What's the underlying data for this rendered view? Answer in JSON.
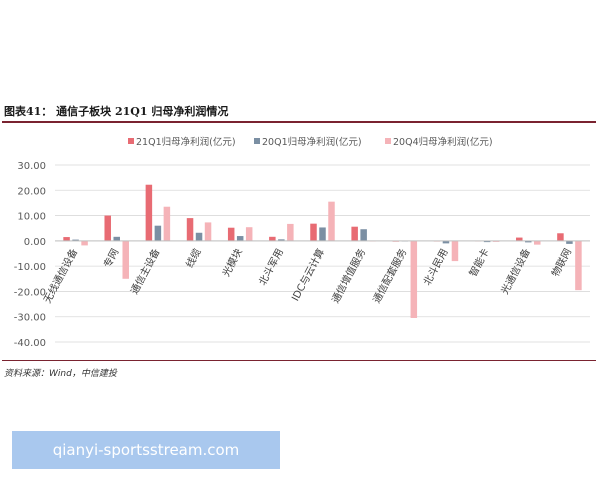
{
  "figure": {
    "title": "图表41：  通信子板块 21Q1 归母净利润情况",
    "source": "资料来源：Wind，中信建投"
  },
  "watermark": {
    "text": "qianyi-sportsstream.com"
  },
  "colors": {
    "s1": "#e86b73",
    "s2": "#7b8fa3",
    "s3": "#f5b3b8",
    "grid": "#d9d9d9",
    "text": "#595959"
  },
  "chart_data": {
    "type": "bar",
    "title": "",
    "xlabel": "",
    "ylabel": "",
    "ylim": [
      -40,
      30
    ],
    "yticks": [
      "30.00",
      "20.00",
      "10.00",
      "0.00",
      "-10.00",
      "-20.00",
      "-30.00",
      "-40.00"
    ],
    "ytick_values": [
      30,
      20,
      10,
      0,
      -10,
      -20,
      -30,
      -40
    ],
    "grid": true,
    "legend": "top",
    "categories": [
      "无线通信设备",
      "专网",
      "通信主设备",
      "线缆",
      "光模块",
      "北斗军用",
      "IDC与云计算",
      "通信增值服务",
      "通信配套服务",
      "北斗民用",
      "智能卡",
      "光通信设备",
      "物联网"
    ],
    "series": [
      {
        "name": "21Q1归母净利润(亿元)",
        "values": [
          1.5,
          10,
          22.2,
          9,
          5.2,
          1.6,
          6.8,
          5.6,
          -0.3,
          0,
          0.1,
          1.3,
          3
        ]
      },
      {
        "name": "20Q1归母净利润(亿元)",
        "values": [
          0.5,
          1.6,
          6,
          3.2,
          1.9,
          0.6,
          5.3,
          4.6,
          0,
          -1,
          -0.5,
          -0.6,
          -1.2
        ]
      },
      {
        "name": "20Q4归母净利润(亿元)",
        "values": [
          -1.8,
          -15,
          13.5,
          7.3,
          5.4,
          6.7,
          15.5,
          0,
          -30.5,
          -8,
          -0.4,
          -1.5,
          -19.5
        ]
      }
    ]
  }
}
